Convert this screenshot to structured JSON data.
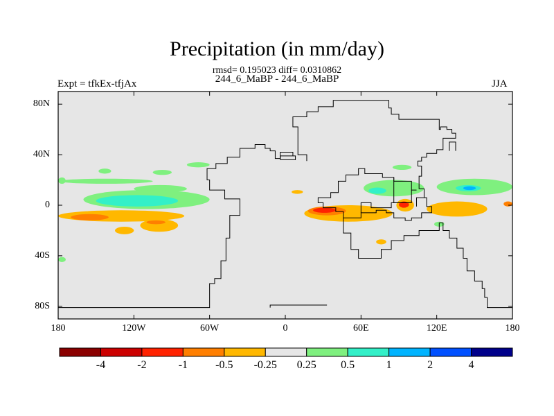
{
  "chart_data": {
    "type": "heatmap",
    "title": "Precipitation (in mm/day)",
    "stats": "rmsd= 0.195023 diff= 0.0310862",
    "subtitle": "244_6_MaBP - 244_6_MaBP",
    "left_label": "Expt = tfkEx-tfjAx",
    "right_label": "JJA",
    "xlim": [
      -180,
      180
    ],
    "ylim": [
      -90,
      90
    ],
    "x_ticks": [
      {
        "value": -180,
        "label": "180"
      },
      {
        "value": -120,
        "label": "120W"
      },
      {
        "value": -60,
        "label": "60W"
      },
      {
        "value": 0,
        "label": "0"
      },
      {
        "value": 60,
        "label": "60E"
      },
      {
        "value": 120,
        "label": "120E"
      },
      {
        "value": 180,
        "label": "180"
      }
    ],
    "y_ticks": [
      {
        "value": 80,
        "label": "80N"
      },
      {
        "value": 40,
        "label": "40N"
      },
      {
        "value": 0,
        "label": "0"
      },
      {
        "value": -40,
        "label": "40S"
      },
      {
        "value": -80,
        "label": "80S"
      }
    ],
    "colorbar": {
      "colors": [
        "#8b0000",
        "#cc0000",
        "#ff2200",
        "#ff7f00",
        "#ffb800",
        "#e6e6e6",
        "#7ff07f",
        "#33f0c8",
        "#00b4ff",
        "#0050ff",
        "#00008b"
      ],
      "labels": [
        "-4",
        "-2",
        "-1",
        "-0.5",
        "-0.25",
        "0.25",
        "0.5",
        "1",
        "2",
        "4"
      ]
    },
    "fields": [
      {
        "lon": [
          -179,
          -105
        ],
        "lat": [
          17,
          21
        ],
        "color": "#7ff07f"
      },
      {
        "lon": [
          -120,
          -78
        ],
        "lat": [
          10,
          16
        ],
        "color": "#7ff07f"
      },
      {
        "lon": [
          -160,
          -60
        ],
        "lat": [
          -3,
          12
        ],
        "color": "#7ff07f"
      },
      {
        "lon": [
          -150,
          -85
        ],
        "lat": [
          -1,
          8
        ],
        "color": "#33f0c8"
      },
      {
        "lon": [
          -180,
          -80
        ],
        "lat": [
          -13,
          -4
        ],
        "color": "#ffb800"
      },
      {
        "lon": [
          -170,
          -140
        ],
        "lat": [
          -12,
          -7
        ],
        "color": "#ff7f00"
      },
      {
        "lon": [
          -115,
          -85
        ],
        "lat": [
          -21,
          -11
        ],
        "color": "#ffb800"
      },
      {
        "lon": [
          -135,
          -120
        ],
        "lat": [
          -23,
          -17
        ],
        "color": "#ffb800"
      },
      {
        "lon": [
          -110,
          -95
        ],
        "lat": [
          -15,
          -12
        ],
        "color": "#ff7f00"
      },
      {
        "lon": [
          -148,
          -138
        ],
        "lat": [
          25,
          29
        ],
        "color": "#7ff07f"
      },
      {
        "lon": [
          -105,
          -90
        ],
        "lat": [
          24,
          28
        ],
        "color": "#7ff07f"
      },
      {
        "lon": [
          -78,
          -60
        ],
        "lat": [
          30,
          34
        ],
        "color": "#7ff07f"
      },
      {
        "lon": [
          -180,
          -174
        ],
        "lat": [
          17,
          22
        ],
        "color": "#7ff07f"
      },
      {
        "lon": [
          -180,
          -174
        ],
        "lat": [
          -45,
          -41
        ],
        "color": "#7ff07f"
      },
      {
        "lon": [
          62,
          110
        ],
        "lat": [
          7,
          20
        ],
        "color": "#7ff07f"
      },
      {
        "lon": [
          66,
          80
        ],
        "lat": [
          9,
          14
        ],
        "color": "#33f0c8"
      },
      {
        "lon": [
          15,
          85
        ],
        "lat": [
          -13,
          0
        ],
        "color": "#ffb800"
      },
      {
        "lon": [
          18,
          48
        ],
        "lat": [
          -8,
          -1
        ],
        "color": "#ff7f00"
      },
      {
        "lon": [
          22,
          40
        ],
        "lat": [
          -6,
          -2
        ],
        "color": "#ff2200"
      },
      {
        "lon": [
          88,
          102
        ],
        "lat": [
          -5,
          5
        ],
        "color": "#ffb800"
      },
      {
        "lon": [
          90,
          98
        ],
        "lat": [
          -2,
          3
        ],
        "color": "#ff2200"
      },
      {
        "lon": [
          112,
          160
        ],
        "lat": [
          -9,
          3
        ],
        "color": "#ffb800"
      },
      {
        "lon": [
          120,
          180
        ],
        "lat": [
          8,
          21
        ],
        "color": "#7ff07f"
      },
      {
        "lon": [
          135,
          155
        ],
        "lat": [
          11,
          16
        ],
        "color": "#33f0c8"
      },
      {
        "lon": [
          141,
          151
        ],
        "lat": [
          12,
          15
        ],
        "color": "#00b4ff"
      },
      {
        "lon": [
          85,
          100
        ],
        "lat": [
          28,
          32
        ],
        "color": "#7ff07f"
      },
      {
        "lon": [
          72,
          80
        ],
        "lat": [
          -31,
          -27
        ],
        "color": "#ffb800"
      },
      {
        "lon": [
          118,
          126
        ],
        "lat": [
          -17,
          -13
        ],
        "color": "#7ff07f"
      },
      {
        "lon": [
          173,
          180
        ],
        "lat": [
          -1,
          3
        ],
        "color": "#ff7f00"
      },
      {
        "lon": [
          5,
          14
        ],
        "lat": [
          9,
          12
        ],
        "color": "#ffb800"
      }
    ],
    "coastlines": [
      {
        "name": "americas-coast",
        "points": [
          [
            -180,
            -81
          ],
          [
            -60,
            -81
          ],
          [
            -60,
            -62
          ],
          [
            -56,
            -62
          ],
          [
            -56,
            -58
          ],
          [
            -51,
            -58
          ],
          [
            -51,
            -44
          ],
          [
            -47,
            -44
          ],
          [
            -47,
            -26
          ],
          [
            -44,
            -26
          ],
          [
            -44,
            -8
          ],
          [
            -36,
            -8
          ],
          [
            -36,
            5
          ],
          [
            -48,
            5
          ],
          [
            -48,
            12
          ],
          [
            -60,
            12
          ],
          [
            -60,
            20
          ],
          [
            -62,
            20
          ],
          [
            -62,
            29
          ],
          [
            -55,
            29
          ],
          [
            -55,
            33
          ],
          [
            -46,
            33
          ],
          [
            -46,
            38
          ],
          [
            -36,
            38
          ],
          [
            -36,
            45
          ],
          [
            -24,
            45
          ],
          [
            -24,
            48
          ],
          [
            -16,
            48
          ],
          [
            -16,
            45
          ],
          [
            -12,
            45
          ],
          [
            -12,
            43
          ],
          [
            -8,
            43
          ],
          [
            -8,
            37
          ],
          [
            -4,
            37
          ],
          [
            -4,
            42
          ],
          [
            6,
            42
          ],
          [
            6,
            39
          ]
        ]
      },
      {
        "name": "eurasia-coast",
        "points": [
          [
            -12,
            -81
          ],
          [
            -12,
            -79
          ],
          [
            33,
            -79
          ]
        ]
      },
      {
        "name": "africa-coast",
        "points": [
          [
            17,
            35
          ],
          [
            17,
            40
          ],
          [
            10,
            40
          ],
          [
            10,
            62
          ],
          [
            6,
            62
          ],
          [
            6,
            70
          ],
          [
            17,
            70
          ],
          [
            17,
            74
          ],
          [
            26,
            74
          ],
          [
            26,
            78
          ],
          [
            38,
            78
          ],
          [
            38,
            83
          ],
          [
            82,
            83
          ],
          [
            82,
            77
          ],
          [
            84,
            77
          ],
          [
            84,
            72
          ],
          [
            90,
            72
          ],
          [
            90,
            68
          ],
          [
            122,
            68
          ],
          [
            122,
            60
          ],
          [
            123,
            60
          ],
          [
            123,
            62
          ],
          [
            128,
            62
          ],
          [
            128,
            60
          ],
          [
            132,
            60
          ],
          [
            132,
            57
          ],
          [
            135,
            57
          ],
          [
            135,
            53
          ],
          [
            125,
            53
          ],
          [
            125,
            44
          ],
          [
            120,
            44
          ],
          [
            120,
            41
          ],
          [
            112,
            41
          ],
          [
            112,
            38
          ],
          [
            108,
            38
          ],
          [
            108,
            35
          ],
          [
            105,
            35
          ],
          [
            105,
            31
          ],
          [
            108,
            31
          ],
          [
            108,
            23
          ],
          [
            106,
            23
          ],
          [
            106,
            13
          ],
          [
            110,
            13
          ],
          [
            110,
            6
          ],
          [
            112,
            6
          ],
          [
            112,
            -1
          ],
          [
            116,
            -1
          ],
          [
            116,
            -6
          ],
          [
            108,
            -6
          ],
          [
            108,
            -10
          ],
          [
            100,
            -10
          ],
          [
            100,
            -12
          ],
          [
            95,
            -12
          ],
          [
            95,
            -10
          ],
          [
            86,
            -10
          ],
          [
            86,
            -6
          ],
          [
            80,
            -6
          ],
          [
            80,
            -4
          ],
          [
            72,
            -4
          ],
          [
            72,
            -6
          ],
          [
            60,
            -6
          ],
          [
            60,
            -10
          ],
          [
            46,
            -10
          ],
          [
            46,
            -5
          ],
          [
            40,
            -5
          ],
          [
            40,
            -2
          ],
          [
            30,
            -2
          ],
          [
            30,
            2
          ],
          [
            26,
            2
          ],
          [
            26,
            6
          ],
          [
            36,
            6
          ],
          [
            36,
            10
          ],
          [
            42,
            10
          ],
          [
            42,
            19
          ],
          [
            48,
            19
          ],
          [
            48,
            24
          ],
          [
            58,
            24
          ],
          [
            58,
            29
          ],
          [
            63,
            29
          ],
          [
            63,
            25
          ],
          [
            77,
            25
          ],
          [
            77,
            22
          ],
          [
            86,
            22
          ],
          [
            86,
            19
          ],
          [
            100,
            19
          ],
          [
            100,
            12
          ],
          [
            104,
            12
          ]
        ]
      },
      {
        "name": "africa-south",
        "points": [
          [
            46,
            -10
          ],
          [
            46,
            -22
          ],
          [
            52,
            -22
          ],
          [
            52,
            -35
          ],
          [
            58,
            -35
          ],
          [
            58,
            -42
          ],
          [
            76,
            -42
          ],
          [
            76,
            -35
          ],
          [
            84,
            -35
          ],
          [
            84,
            -28
          ],
          [
            94,
            -28
          ],
          [
            94,
            -24
          ],
          [
            106,
            -24
          ],
          [
            106,
            -20
          ],
          [
            122,
            -20
          ],
          [
            122,
            -14
          ],
          [
            125,
            -14
          ],
          [
            125,
            -20
          ],
          [
            130,
            -20
          ],
          [
            130,
            -26
          ],
          [
            136,
            -26
          ],
          [
            136,
            -34
          ],
          [
            141,
            -34
          ],
          [
            141,
            -42
          ],
          [
            144,
            -42
          ],
          [
            144,
            -52
          ],
          [
            150,
            -52
          ],
          [
            150,
            -60
          ],
          [
            156,
            -60
          ],
          [
            156,
            -66
          ],
          [
            158,
            -66
          ],
          [
            158,
            -73
          ],
          [
            160,
            -73
          ],
          [
            160,
            -81
          ],
          [
            180,
            -81
          ]
        ]
      },
      {
        "name": "india-box",
        "points": [
          [
            86,
            22
          ],
          [
            86,
            2
          ],
          [
            100,
            2
          ],
          [
            100,
            12
          ]
        ]
      },
      {
        "name": "sea-box",
        "points": [
          [
            60,
            -6
          ],
          [
            60,
            2
          ],
          [
            68,
            2
          ],
          [
            68,
            -2
          ],
          [
            84,
            -2
          ],
          [
            84,
            2
          ],
          [
            100,
            2
          ]
        ]
      },
      {
        "name": "iceland",
        "points": [
          [
            -4,
            36
          ],
          [
            -4,
            39
          ],
          [
            8,
            39
          ],
          [
            8,
            36
          ],
          [
            -4,
            36
          ]
        ]
      },
      {
        "name": "japan",
        "points": [
          [
            130,
            43
          ],
          [
            130,
            50
          ],
          [
            135,
            50
          ],
          [
            135,
            43
          ]
        ]
      },
      {
        "name": "east-asia-coast",
        "points": [
          [
            104,
            -1
          ],
          [
            104,
            6
          ],
          [
            110,
            6
          ]
        ]
      }
    ]
  }
}
